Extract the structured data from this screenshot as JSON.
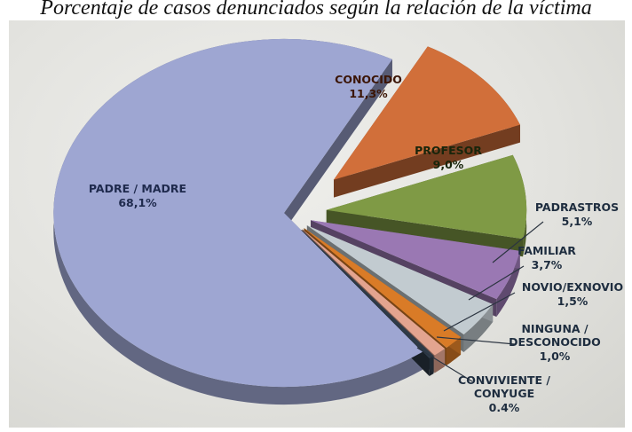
{
  "title": "Porcentaje de casos denunciados según la relación de la víctima",
  "chart_data": {
    "type": "pie",
    "slices": [
      {
        "label": "PADRE / MADRE",
        "value_label": "68,1%",
        "value": 68.1,
        "color": "#9ea6d2"
      },
      {
        "label": "CONOCIDO",
        "value_label": "11,3%",
        "value": 11.3,
        "color": "#d16f3a"
      },
      {
        "label": "PROFESOR",
        "value_label": "9,0%",
        "value": 9.0,
        "color": "#7f9a45"
      },
      {
        "label": "PADRASTROS",
        "value_label": "5,1%",
        "value": 5.1,
        "color": "#9a78b3"
      },
      {
        "label": "FAMILIAR",
        "value_label": "3,7%",
        "value": 3.7,
        "color": "#c2cbd0"
      },
      {
        "label": "NOVIO/EXNOVIO",
        "value_label": "1,5%",
        "value": 1.5,
        "color": "#d97b27"
      },
      {
        "label": "NINGUNA / DESCONOCIDO",
        "value_label": "1,0%",
        "value": 1.0,
        "color": "#e3a48f"
      },
      {
        "label": "CONVIVIENTE / CONYUGE",
        "value_label": "0.4%",
        "value": 0.4,
        "color": "#2e3a47"
      }
    ]
  }
}
